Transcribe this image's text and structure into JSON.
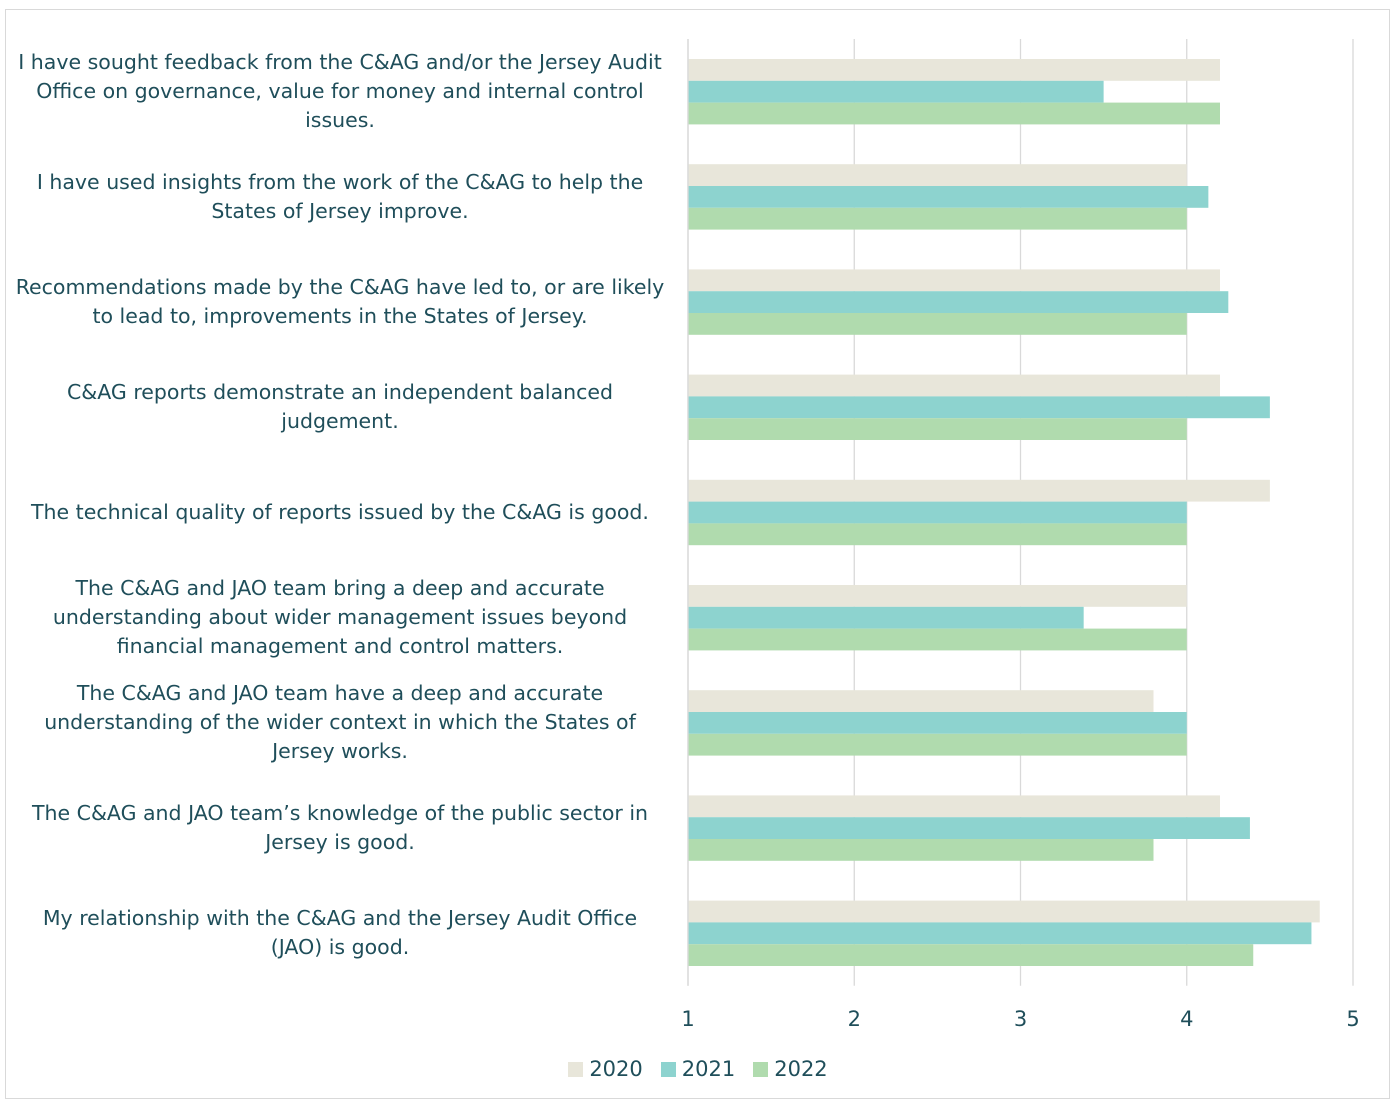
{
  "chart_data": {
    "type": "bar",
    "orientation": "horizontal",
    "categories": [
      "I have sought feedback from the C&AG and/or the Jersey Audit Office on governance, value for money and internal control issues.",
      "I have used insights from the work of the C&AG to help the States of Jersey improve.",
      "Recommendations made by the C&AG have led to, or are likely to lead to, improvements in the States of Jersey.",
      "C&AG reports demonstrate an independent balanced judgement.",
      "The technical quality of reports issued by the C&AG is good.",
      "The C&AG and JAO team bring a deep and accurate understanding about wider management issues beyond financial management and control matters.",
      "The C&AG and JAO team have a deep and accurate understanding of the wider context in which the States of Jersey works.",
      "The C&AG and JAO team’s knowledge of the public sector in Jersey is good.",
      "My relationship with the C&AG and the Jersey Audit Office (JAO) is good."
    ],
    "series": [
      {
        "name": "2020",
        "color": "#e8e6da",
        "values": [
          4.2,
          4.0,
          4.2,
          4.2,
          4.5,
          4.0,
          3.8,
          4.2,
          4.8
        ]
      },
      {
        "name": "2021",
        "color": "#8dd3cf",
        "values": [
          3.5,
          4.13,
          4.25,
          4.5,
          4.0,
          3.38,
          4.0,
          4.38,
          4.75
        ]
      },
      {
        "name": "2022",
        "color": "#b0dbae",
        "values": [
          4.2,
          4.0,
          4.0,
          4.0,
          4.0,
          4.0,
          4.0,
          3.8,
          4.4
        ]
      }
    ],
    "xlim": [
      1,
      5
    ],
    "x_ticks": [
      "1",
      "2",
      "3",
      "4",
      "5"
    ],
    "grid": true,
    "legend_position": "bottom",
    "title": "",
    "xlabel": "",
    "ylabel": ""
  }
}
